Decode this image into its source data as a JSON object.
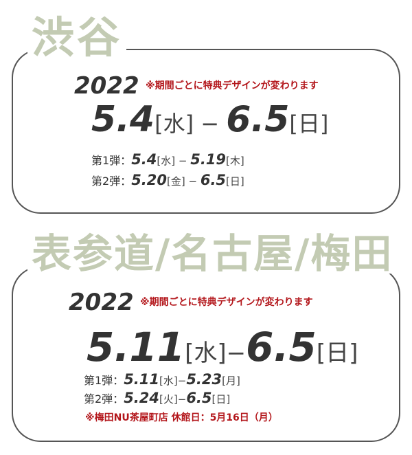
{
  "sections": [
    {
      "title": "渋谷",
      "year": "2022",
      "note": "※期間ごとに特典デザインが変わります",
      "range": {
        "start": "5.4",
        "start_day": "[水]",
        "sep": " − ",
        "end": "6.5",
        "end_day": "[日]"
      },
      "phases": [
        {
          "label": "第1弾：",
          "start": "5.4",
          "start_day": "[水]",
          "sep": " − ",
          "end": "5.19",
          "end_day": "[木]"
        },
        {
          "label": "第2弾：",
          "start": "5.20",
          "start_day": "[金]",
          "sep": " − ",
          "end": "6.5",
          "end_day": "[日]"
        }
      ]
    },
    {
      "title": "表参道/名古屋/梅田",
      "year": "2022",
      "note": "※期間ごとに特典デザインが変わります",
      "range": {
        "start": "5.11",
        "start_day": "[水]",
        "sep": "−",
        "end": "6.5",
        "end_day": "[日]"
      },
      "phases": [
        {
          "label": "第1弾：",
          "start": "5.11",
          "start_day": "[水]",
          "sep": "−",
          "end": "5.23",
          "end_day": "[月]"
        },
        {
          "label": "第2弾：",
          "start": "5.24",
          "start_day": "[火]",
          "sep": "−",
          "end": "6.5",
          "end_day": "[日]"
        }
      ],
      "closure_note": "※梅田NU茶屋町店 休館日：5月16日（月）"
    }
  ],
  "colors": {
    "title": "#c3cbb3",
    "note": "#b3161b",
    "text": "#333333",
    "border": "#555555"
  }
}
